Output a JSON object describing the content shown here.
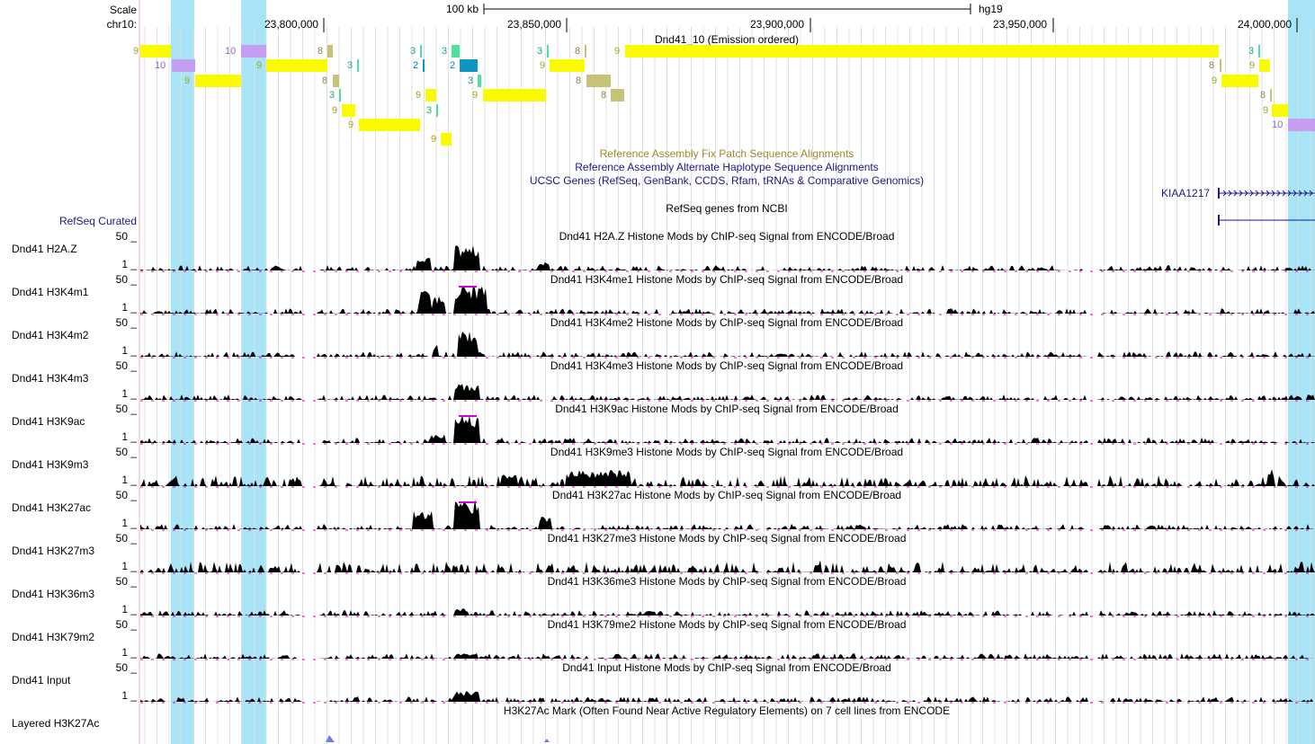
{
  "header": {
    "scale_label": "Scale",
    "chrom_label": "chr10:",
    "scale_bar_text": "100 kb",
    "assembly": "hg19",
    "positions": [
      "23,800,000",
      "23,850,000",
      "23,900,000",
      "23,950,000",
      "24,000,000"
    ]
  },
  "segmentation": {
    "title": "Dnd41_10 (Emission ordered)",
    "colors": {
      "s2": "#0f95c3",
      "s3": "#4fe0a0",
      "s8": "#c7c277",
      "s9": "#fafa00",
      "s10": "#c69ff2"
    }
  },
  "tracks": {
    "fix_patch": "Reference Assembly Fix Patch Sequence Alignments",
    "alt_haplo": "Reference Assembly Alternate Haplotype Sequence Alignments",
    "ucsc_genes": "UCSC Genes (RefSeq, GenBank, CCDS, Rfam, tRNAs & Comparative Genomics)",
    "gene_name": "KIAA1217",
    "refseq_left": "RefSeq Curated",
    "refseq_center": "RefSeq genes from NCBI",
    "layered_left": "Layered H3K27Ac",
    "layered_center": "H3K27Ac Mark (Often Found Near Active Regulatory Elements) on 7 cell lines from ENCODE"
  },
  "signal": {
    "ymax": "50 _",
    "ymin": "1 _",
    "tracks": [
      {
        "left": "Dnd41 H2A.Z",
        "center": "Dnd41 H2A.Z Histone Mods by ChIP-seq Signal from ENCODE/Broad"
      },
      {
        "left": "Dnd41 H3K4m1",
        "center": "Dnd41 H3K4me1 Histone Mods by ChIP-seq Signal from ENCODE/Broad"
      },
      {
        "left": "Dnd41 H3K4m2",
        "center": "Dnd41 H3K4me2 Histone Mods by ChIP-seq Signal from ENCODE/Broad"
      },
      {
        "left": "Dnd41 H3K4m3",
        "center": "Dnd41 H3K4me3 Histone Mods by ChIP-seq Signal from ENCODE/Broad"
      },
      {
        "left": "Dnd41 H3K9ac",
        "center": "Dnd41 H3K9ac Histone Mods by ChIP-seq Signal from ENCODE/Broad"
      },
      {
        "left": "Dnd41 H3K9m3",
        "center": "Dnd41 H3K9me3 Histone Mods by ChIP-seq Signal from ENCODE/Broad"
      },
      {
        "left": "Dnd41 H3K27ac",
        "center": "Dnd41 H3K27ac Histone Mods by ChIP-seq Signal from ENCODE/Broad"
      },
      {
        "left": "Dnd41 H3K27m3",
        "center": "Dnd41 H3K27me3 Histone Mods by ChIP-seq Signal from ENCODE/Broad"
      },
      {
        "left": "Dnd41 H3K36m3",
        "center": "Dnd41 H3K36me3 Histone Mods by ChIP-seq Signal from ENCODE/Broad"
      },
      {
        "left": "Dnd41 H3K79m2",
        "center": "Dnd41 H3K79me2 Histone Mods by ChIP-seq Signal from ENCODE/Broad"
      },
      {
        "left": "Dnd41 Input",
        "center": "Dnd41 Input Histone Mods by ChIP-seq Signal from ENCODE/Broad"
      }
    ]
  }
}
